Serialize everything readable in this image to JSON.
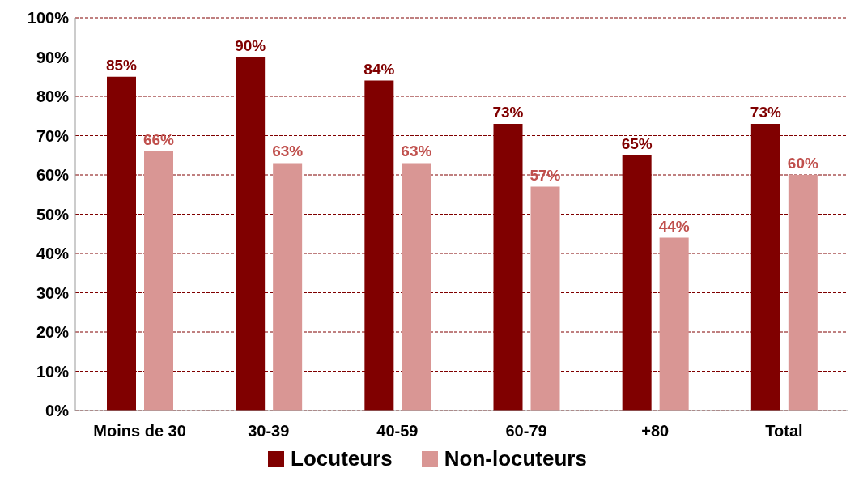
{
  "chart_data": {
    "type": "bar",
    "categories": [
      "Moins de 30",
      "30-39",
      "40-59",
      "60-79",
      "+80",
      "Total"
    ],
    "series": [
      {
        "name": "Locuteurs",
        "color": "#800000",
        "values": [
          85,
          90,
          84,
          73,
          65,
          73
        ],
        "value_labels": [
          "85%",
          "90%",
          "84%",
          "73%",
          "65%",
          "73%"
        ]
      },
      {
        "name": "Non-locuteurs",
        "color": "#d99694",
        "values": [
          66,
          63,
          63,
          57,
          44,
          60
        ],
        "value_labels": [
          "66%",
          "63%",
          "63%",
          "57%",
          "44%",
          "60%"
        ]
      }
    ],
    "ylim": [
      0,
      100
    ],
    "yticks": [
      {
        "value": 0,
        "label": "0%"
      },
      {
        "value": 10,
        "label": "10%"
      },
      {
        "value": 20,
        "label": "20%"
      },
      {
        "value": 30,
        "label": "30%"
      },
      {
        "value": 40,
        "label": "40%"
      },
      {
        "value": 50,
        "label": "50%"
      },
      {
        "value": 60,
        "label": "60%"
      },
      {
        "value": 70,
        "label": "70%"
      },
      {
        "value": 80,
        "label": "80%"
      },
      {
        "value": 90,
        "label": "90%"
      },
      {
        "value": 100,
        "label": "100%"
      }
    ],
    "grid": "y",
    "legend": "bottom"
  }
}
